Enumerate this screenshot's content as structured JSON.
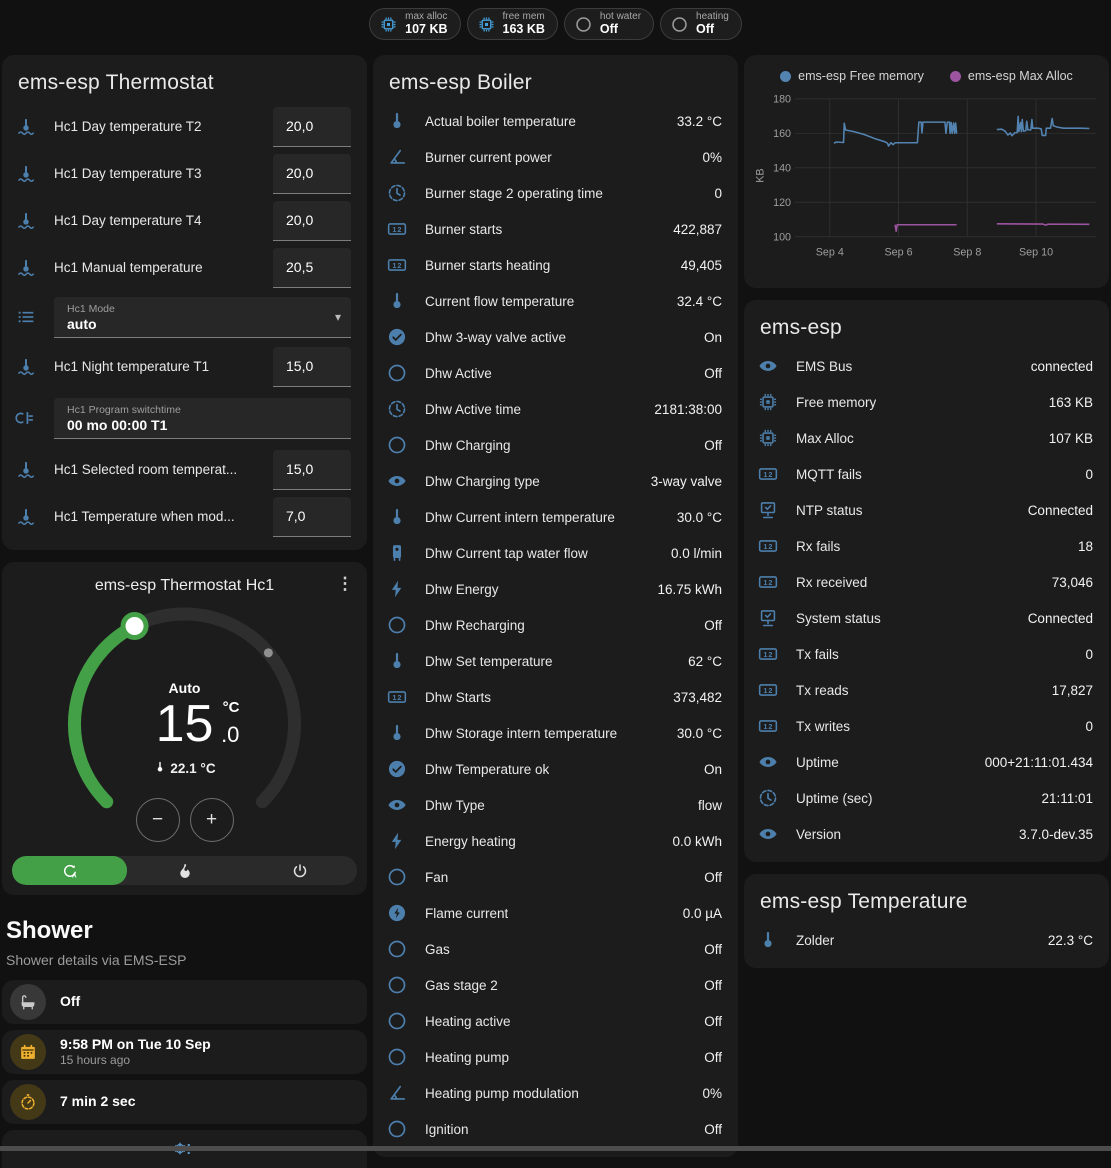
{
  "badges": [
    {
      "label": "max alloc",
      "value": "107 KB",
      "icon": "chip",
      "icon_color": "#45a1dc"
    },
    {
      "label": "free mem",
      "value": "163 KB",
      "icon": "chip",
      "icon_color": "#45a1dc"
    },
    {
      "label": "hot water",
      "value": "Off",
      "icon": "circle-outline",
      "icon_color": "#9e9e9e"
    },
    {
      "label": "heating",
      "value": "Off",
      "icon": "circle-outline",
      "icon_color": "#9e9e9e"
    }
  ],
  "thermostat_card": {
    "title": "ems-esp Thermostat",
    "rows": [
      {
        "type": "number",
        "icon": "coolant-thermometer",
        "label": "Hc1 Day temperature T2",
        "value": "20,0"
      },
      {
        "type": "number",
        "icon": "coolant-thermometer",
        "label": "Hc1 Day temperature T3",
        "value": "20,0"
      },
      {
        "type": "number",
        "icon": "coolant-thermometer",
        "label": "Hc1 Day temperature T4",
        "value": "20,0"
      },
      {
        "type": "number",
        "icon": "coolant-thermometer",
        "label": "Hc1 Manual temperature",
        "value": "20,5"
      },
      {
        "type": "select",
        "icon": "format-list",
        "label": "Hc1 Mode",
        "value": "auto"
      },
      {
        "type": "number",
        "icon": "coolant-thermometer",
        "label": "Hc1 Night temperature T1",
        "value": "15,0"
      },
      {
        "type": "textfield",
        "icon": "valve",
        "label": "Hc1 Program switchtime",
        "value": "00 mo 00:00 T1"
      },
      {
        "type": "number",
        "icon": "coolant-thermometer",
        "label": "Hc1 Selected room temperat...",
        "value": "15,0"
      },
      {
        "type": "number",
        "icon": "coolant-thermometer",
        "label": "Hc1 Temperature when mod...",
        "value": "7,0"
      }
    ]
  },
  "hc1_card": {
    "title": "ems-esp Thermostat Hc1",
    "mode_label": "Auto",
    "target_whole": "15",
    "target_frac": ".0",
    "target_unit": "°C",
    "current_label": "22.1 °C",
    "dial": {
      "min": 5,
      "max": 30,
      "target": 15,
      "current": 22.1,
      "accent": "#43a047"
    },
    "controls": {
      "decrease": "−",
      "increase": "+",
      "menu": "⋮"
    },
    "buttons": [
      {
        "icon": "thermostat-auto",
        "name": "auto-mode-button",
        "active": true
      },
      {
        "icon": "fire",
        "name": "heat-mode-button",
        "active": false
      },
      {
        "icon": "power",
        "name": "off-mode-button",
        "active": false
      }
    ]
  },
  "shower": {
    "title": "Shower",
    "subtitle": "Shower details via EMS-ESP",
    "items": [
      {
        "icon": "bathtub",
        "chip": "gray",
        "primary": "Off"
      },
      {
        "icon": "calendar",
        "chip": "amber",
        "primary": "9:58 PM on Tue 10 Sep",
        "secondary": "15 hours ago"
      },
      {
        "icon": "timer",
        "chip": "amber",
        "primary": "7 min 2 sec"
      },
      {
        "icon": "snowflake-alert",
        "partial": true,
        "glyph": "❄!"
      }
    ]
  },
  "boiler_card": {
    "title": "ems-esp Boiler",
    "rows": [
      {
        "icon": "thermometer",
        "label": "Actual boiler temperature",
        "value": "33.2 °C"
      },
      {
        "icon": "angle-acute",
        "label": "Burner current power",
        "value": "0%"
      },
      {
        "icon": "progress-clock",
        "label": "Burner stage 2 operating time",
        "value": "0"
      },
      {
        "icon": "counter",
        "label": "Burner starts",
        "value": "422,887"
      },
      {
        "icon": "counter",
        "label": "Burner starts heating",
        "value": "49,405"
      },
      {
        "icon": "thermometer",
        "label": "Current flow temperature",
        "value": "32.4 °C"
      },
      {
        "icon": "check-circle",
        "label": "Dhw 3-way valve active",
        "value": "On"
      },
      {
        "icon": "circle-outline",
        "label": "Dhw Active",
        "value": "Off"
      },
      {
        "icon": "progress-clock",
        "label": "Dhw Active time",
        "value": "2181:38:00"
      },
      {
        "icon": "circle-outline",
        "label": "Dhw Charging",
        "value": "Off"
      },
      {
        "icon": "eye",
        "label": "Dhw Charging type",
        "value": "3-way valve"
      },
      {
        "icon": "thermometer",
        "label": "Dhw Current intern temperature",
        "value": "30.0 °C"
      },
      {
        "icon": "water-boiler",
        "label": "Dhw Current tap water flow",
        "value": "0.0 l/min"
      },
      {
        "icon": "lightning-bolt",
        "label": "Dhw Energy",
        "value": "16.75 kWh"
      },
      {
        "icon": "circle-outline",
        "label": "Dhw Recharging",
        "value": "Off"
      },
      {
        "icon": "thermometer",
        "label": "Dhw Set temperature",
        "value": "62 °C"
      },
      {
        "icon": "counter",
        "label": "Dhw Starts",
        "value": "373,482"
      },
      {
        "icon": "thermometer",
        "label": "Dhw Storage intern temperature",
        "value": "30.0 °C"
      },
      {
        "icon": "check-circle",
        "label": "Dhw Temperature ok",
        "value": "On"
      },
      {
        "icon": "eye",
        "label": "Dhw Type",
        "value": "flow"
      },
      {
        "icon": "lightning-bolt",
        "label": "Energy heating",
        "value": "0.0 kWh"
      },
      {
        "icon": "circle-outline",
        "label": "Fan",
        "value": "Off"
      },
      {
        "icon": "flash-circle",
        "label": "Flame current",
        "value": "0.0 µA"
      },
      {
        "icon": "circle-outline",
        "label": "Gas",
        "value": "Off"
      },
      {
        "icon": "circle-outline",
        "label": "Gas stage 2",
        "value": "Off"
      },
      {
        "icon": "circle-outline",
        "label": "Heating active",
        "value": "Off"
      },
      {
        "icon": "circle-outline",
        "label": "Heating pump",
        "value": "Off"
      },
      {
        "icon": "angle-acute",
        "label": "Heating pump modulation",
        "value": "0%"
      },
      {
        "icon": "circle-outline",
        "label": "Ignition",
        "value": "Off"
      }
    ]
  },
  "chart_data": {
    "type": "line",
    "title": "",
    "xlabel": "",
    "ylabel": "KB",
    "xlim": [
      3.1,
      11.75
    ],
    "ylim": [
      100,
      180
    ],
    "yticks": [
      100,
      120,
      140,
      160,
      180
    ],
    "xticks": {
      "values": [
        4,
        6,
        8,
        10
      ],
      "labels": [
        "Sep 4",
        "Sep 6",
        "Sep 8",
        "Sep 10"
      ]
    },
    "grid": true,
    "legend_position": "top",
    "series": [
      {
        "name": "ems-esp Free memory",
        "color": "#5383b0",
        "segments": [
          [
            [
              4.12,
              154.3
            ],
            [
              4.2,
              155
            ],
            [
              4.3,
              154.8
            ],
            [
              4.4,
              154.7
            ],
            [
              4.42,
              165.8
            ],
            [
              4.46,
              161.9
            ],
            [
              4.7,
              161
            ],
            [
              5.0,
              159.3
            ],
            [
              5.3,
              157
            ],
            [
              5.5,
              155.8
            ],
            [
              5.62,
              155
            ],
            [
              5.68,
              154.2
            ],
            [
              5.71,
              152.6
            ],
            [
              5.78,
              154.6
            ],
            [
              5.84,
              153.4
            ],
            [
              5.9,
              154.5
            ],
            [
              6.55,
              154.5
            ],
            [
              6.59,
              166.5
            ],
            [
              6.66,
              166.5
            ],
            [
              6.68,
              160.2
            ],
            [
              6.71,
              166.5
            ],
            [
              7.35,
              166.5
            ],
            [
              7.38,
              160
            ],
            [
              7.42,
              166.5
            ],
            [
              7.48,
              166.5
            ],
            [
              7.5,
              160
            ],
            [
              7.53,
              166.3
            ],
            [
              7.56,
              160
            ],
            [
              7.6,
              166
            ],
            [
              7.63,
              160
            ],
            [
              7.66,
              166
            ],
            [
              7.69,
              159.8
            ]
          ],
          [
            [
              8.86,
              162.2
            ],
            [
              9.0,
              162.4
            ],
            [
              9.1,
              161.2
            ],
            [
              9.18,
              159
            ],
            [
              9.25,
              160.2
            ],
            [
              9.3,
              158.6
            ],
            [
              9.38,
              160.3
            ],
            [
              9.45,
              160.4
            ],
            [
              9.48,
              169.8
            ],
            [
              9.5,
              161
            ],
            [
              9.55,
              166.2
            ],
            [
              9.57,
              161
            ],
            [
              9.6,
              168
            ],
            [
              9.63,
              161.3
            ],
            [
              9.7,
              161.5
            ],
            [
              9.73,
              167
            ],
            [
              9.76,
              162
            ],
            [
              9.85,
              162
            ],
            [
              9.88,
              168
            ],
            [
              9.9,
              163
            ],
            [
              10.05,
              163
            ],
            [
              10.15,
              162.6
            ],
            [
              10.18,
              158.8
            ],
            [
              10.28,
              158.8
            ],
            [
              10.3,
              163
            ],
            [
              10.42,
              163
            ],
            [
              10.47,
              168.6
            ],
            [
              10.5,
              164.4
            ],
            [
              10.62,
              163.6
            ],
            [
              10.8,
              163
            ],
            [
              11.3,
              163
            ],
            [
              11.55,
              162.8
            ]
          ]
        ]
      },
      {
        "name": "ems-esp Max Alloc",
        "color": "#9c54a1",
        "segments": [
          [
            [
              5.9,
              107
            ],
            [
              5.93,
              103.2
            ],
            [
              5.96,
              107
            ],
            [
              7.69,
              107
            ]
          ],
          [
            [
              8.86,
              107.5
            ],
            [
              10.2,
              107.4
            ],
            [
              10.28,
              106.7
            ],
            [
              10.35,
              107.3
            ],
            [
              11.55,
              107.2
            ]
          ]
        ]
      }
    ]
  },
  "emsesp_card": {
    "title": "ems-esp",
    "rows": [
      {
        "icon": "eye",
        "label": "EMS Bus",
        "value": "connected"
      },
      {
        "icon": "chip",
        "label": "Free memory",
        "value": "163 KB"
      },
      {
        "icon": "chip",
        "label": "Max Alloc",
        "value": "107 KB"
      },
      {
        "icon": "counter",
        "label": "MQTT fails",
        "value": "0"
      },
      {
        "icon": "network-check",
        "label": "NTP status",
        "value": "Connected"
      },
      {
        "icon": "counter",
        "label": "Rx fails",
        "value": "18"
      },
      {
        "icon": "counter",
        "label": "Rx received",
        "value": "73,046"
      },
      {
        "icon": "network-check",
        "label": "System status",
        "value": "Connected"
      },
      {
        "icon": "counter",
        "label": "Tx fails",
        "value": "0"
      },
      {
        "icon": "counter",
        "label": "Tx reads",
        "value": "17,827"
      },
      {
        "icon": "counter",
        "label": "Tx writes",
        "value": "0"
      },
      {
        "icon": "eye",
        "label": "Uptime",
        "value": "000+21:11:01.434"
      },
      {
        "icon": "progress-clock",
        "label": "Uptime (sec)",
        "value": "21:11:01"
      },
      {
        "icon": "eye",
        "label": "Version",
        "value": "3.7.0-dev.35"
      }
    ]
  },
  "temperature_card": {
    "title": "ems-esp Temperature",
    "rows": [
      {
        "icon": "thermometer",
        "label": "Zolder",
        "value": "22.3 °C"
      }
    ]
  }
}
